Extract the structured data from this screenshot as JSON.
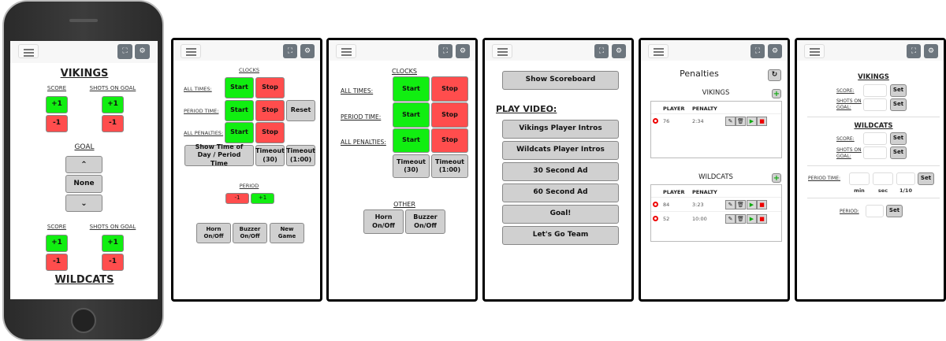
{
  "header": {
    "menu_icon": "hamburger-icon",
    "fullscreen_icon": "fullscreen-icon",
    "settings_icon": "gear-icon"
  },
  "colors": {
    "green": "#11ee11",
    "red": "#ff4d4d",
    "gray": "#d0d0d0",
    "dark": "#6c757d"
  },
  "score_screen": {
    "home_team": "VIKINGS",
    "away_team": "WILDCATS",
    "score_label": "SCORE",
    "shots_label": "SHOTS ON GOAL",
    "plus": "+1",
    "minus": "-1",
    "goal_label": "GOAL",
    "up": "^",
    "goal_value": "None",
    "down": "v"
  },
  "clocks_screen": {
    "title": "CLOCKS",
    "all_times": "ALL TIMES:",
    "period_time": "PERIOD TIME:",
    "all_penalties": "ALL PENALTIES:",
    "start": "Start",
    "stop": "Stop",
    "reset": "Reset",
    "show_time": "Show Time of Day / Period Time",
    "timeout30": "Timeout (30)",
    "timeout100": "Timeout (1:00)",
    "period_title": "PERIOD",
    "minus": "-1",
    "plus": "+1",
    "horn": "Horn On/Off",
    "buzzer": "Buzzer On/Off",
    "new_game": "New Game"
  },
  "clocks_screen2": {
    "title": "CLOCKS",
    "all_times": "ALL TIMES:",
    "period_time": "PERIOD TIME:",
    "all_penalties": "ALL PENALTIES:",
    "start": "Start",
    "stop": "Stop",
    "timeout30": "Timeout (30)",
    "timeout100": "Timeout (1:00)",
    "other_title": "OTHER",
    "horn": "Horn On/Off",
    "buzzer": "Buzzer On/Off"
  },
  "video_screen": {
    "show_scoreboard": "Show Scoreboard",
    "play_video": "PLAY VIDEO:",
    "videos": [
      "Vikings Player Intros",
      "Wildcats Player Intros",
      "30 Second Ad",
      "60 Second Ad",
      "Goal!",
      "Let's Go Team"
    ]
  },
  "penalties_screen": {
    "title": "Penalties",
    "refresh_icon": "refresh-icon",
    "col_player": "PLAYER",
    "col_penalty": "PENALTY",
    "add": "+",
    "teams": [
      {
        "name": "VIKINGS",
        "rows": [
          {
            "player": "76",
            "penalty": "2:34"
          }
        ]
      },
      {
        "name": "WILDCATS",
        "rows": [
          {
            "player": "84",
            "penalty": "3:23"
          },
          {
            "player": "52",
            "penalty": "10:00"
          }
        ]
      }
    ]
  },
  "set_screen": {
    "home_team": "VIKINGS",
    "away_team": "WILDCATS",
    "score_label": "SCORE:",
    "shots_label": "SHOTS ON GOAL:",
    "set": "Set",
    "period_time_label": "PERIOD TIME:",
    "min": "min",
    "sec": "sec",
    "tenths": "1/10",
    "period_label": "PERIOD:",
    "values": {
      "home_score": "",
      "home_shots": "",
      "away_score": "",
      "away_shots": "",
      "min": "",
      "sec": "",
      "tenths": "",
      "period": ""
    }
  }
}
